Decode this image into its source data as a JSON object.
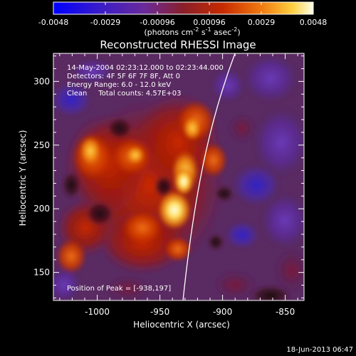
{
  "colorbar": {
    "tick_labels": [
      "-0.0048",
      "-0.0029",
      "-0.00096",
      "0.00096",
      "0.0029",
      "0.0048"
    ],
    "range": [
      -0.0048,
      0.0048
    ],
    "unit_label": "(photons cm",
    "unit_sup1": "-2",
    "unit_mid": " s",
    "unit_sup2": "-1",
    "unit_mid2": " asec",
    "unit_sup3": "-2",
    "unit_end": ")"
  },
  "plot": {
    "title": "Reconstructed RHESSI Image",
    "xlabel": "Heliocentric X (arcsec)",
    "ylabel": "Heliocentric Y (arcsec)",
    "x_ticks": [
      "-1000",
      "-950",
      "-900",
      "-850"
    ],
    "x_tick_values": [
      -1000,
      -950,
      -900,
      -850
    ],
    "y_ticks": [
      "150",
      "200",
      "250",
      "300"
    ],
    "y_tick_values": [
      150,
      200,
      250,
      300
    ],
    "xlim": [
      -1035,
      -835
    ],
    "ylim": [
      128,
      322
    ],
    "annotations": [
      "14-May-2004 02:23:12.000 to 02:23:44.000",
      "Detectors: 4F 5F 6F 7F 8F, Att 0",
      "Energy Range: 6.0 - 12.0 keV",
      "Clean     Total counts: 4.57E+03"
    ],
    "peak_label": "Position of Peak = [-938,197]",
    "limb_color": "#ffffff"
  },
  "footer": {
    "timestamp": "18-Jun-2013 06:47"
  }
}
